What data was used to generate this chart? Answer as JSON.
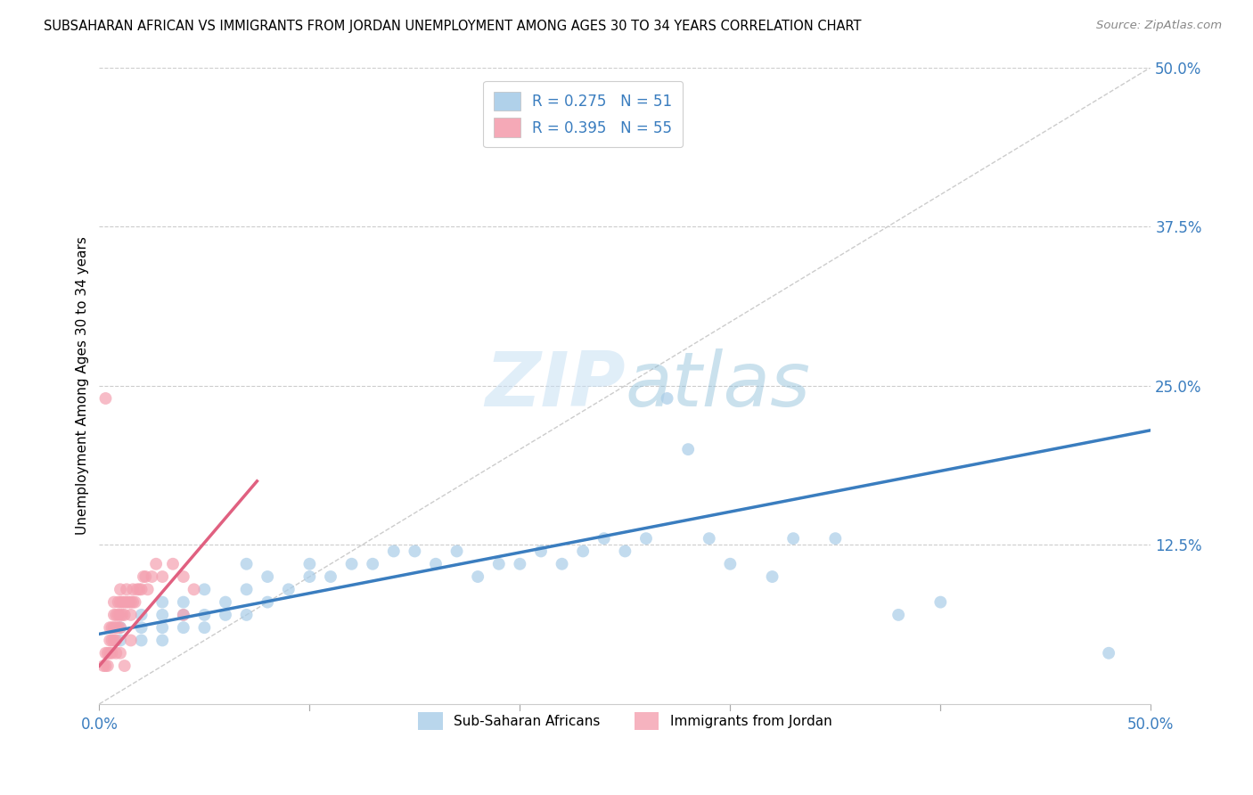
{
  "title": "SUBSAHARAN AFRICAN VS IMMIGRANTS FROM JORDAN UNEMPLOYMENT AMONG AGES 30 TO 34 YEARS CORRELATION CHART",
  "source": "Source: ZipAtlas.com",
  "ylabel": "Unemployment Among Ages 30 to 34 years",
  "xlim": [
    0.0,
    0.5
  ],
  "ylim": [
    0.0,
    0.5
  ],
  "xtick_positions": [
    0.0,
    0.1,
    0.2,
    0.3,
    0.4,
    0.5
  ],
  "ytick_positions": [
    0.0,
    0.125,
    0.25,
    0.375,
    0.5
  ],
  "xticklabels": [
    "0.0%",
    "",
    "",
    "",
    "",
    "50.0%"
  ],
  "yticklabels": [
    "",
    "12.5%",
    "25.0%",
    "37.5%",
    "50.0%"
  ],
  "watermark": "ZIPatlas",
  "legend_blue_r": "R = 0.275",
  "legend_blue_n": "N = 51",
  "legend_pink_r": "R = 0.395",
  "legend_pink_n": "N = 55",
  "blue_color": "#a8cce8",
  "pink_color": "#f4a0b0",
  "blue_line_color": "#3a7dbf",
  "pink_line_color": "#e06080",
  "blue_scatter": [
    [
      0.01,
      0.05
    ],
    [
      0.01,
      0.06
    ],
    [
      0.02,
      0.05
    ],
    [
      0.02,
      0.06
    ],
    [
      0.02,
      0.07
    ],
    [
      0.03,
      0.05
    ],
    [
      0.03,
      0.06
    ],
    [
      0.03,
      0.07
    ],
    [
      0.03,
      0.08
    ],
    [
      0.04,
      0.06
    ],
    [
      0.04,
      0.07
    ],
    [
      0.04,
      0.08
    ],
    [
      0.05,
      0.06
    ],
    [
      0.05,
      0.07
    ],
    [
      0.05,
      0.09
    ],
    [
      0.06,
      0.07
    ],
    [
      0.06,
      0.08
    ],
    [
      0.07,
      0.07
    ],
    [
      0.07,
      0.09
    ],
    [
      0.07,
      0.11
    ],
    [
      0.08,
      0.08
    ],
    [
      0.08,
      0.1
    ],
    [
      0.09,
      0.09
    ],
    [
      0.1,
      0.1
    ],
    [
      0.1,
      0.11
    ],
    [
      0.11,
      0.1
    ],
    [
      0.12,
      0.11
    ],
    [
      0.13,
      0.11
    ],
    [
      0.14,
      0.12
    ],
    [
      0.15,
      0.12
    ],
    [
      0.16,
      0.11
    ],
    [
      0.17,
      0.12
    ],
    [
      0.18,
      0.1
    ],
    [
      0.19,
      0.11
    ],
    [
      0.2,
      0.11
    ],
    [
      0.21,
      0.12
    ],
    [
      0.22,
      0.11
    ],
    [
      0.23,
      0.12
    ],
    [
      0.24,
      0.13
    ],
    [
      0.25,
      0.12
    ],
    [
      0.26,
      0.13
    ],
    [
      0.27,
      0.24
    ],
    [
      0.28,
      0.2
    ],
    [
      0.29,
      0.13
    ],
    [
      0.3,
      0.11
    ],
    [
      0.32,
      0.1
    ],
    [
      0.33,
      0.13
    ],
    [
      0.35,
      0.13
    ],
    [
      0.38,
      0.07
    ],
    [
      0.4,
      0.08
    ],
    [
      0.48,
      0.04
    ]
  ],
  "pink_scatter": [
    [
      0.003,
      0.03
    ],
    [
      0.004,
      0.04
    ],
    [
      0.005,
      0.05
    ],
    [
      0.005,
      0.06
    ],
    [
      0.006,
      0.05
    ],
    [
      0.006,
      0.06
    ],
    [
      0.007,
      0.06
    ],
    [
      0.007,
      0.07
    ],
    [
      0.007,
      0.08
    ],
    [
      0.008,
      0.05
    ],
    [
      0.008,
      0.06
    ],
    [
      0.008,
      0.07
    ],
    [
      0.009,
      0.06
    ],
    [
      0.009,
      0.07
    ],
    [
      0.009,
      0.08
    ],
    [
      0.01,
      0.06
    ],
    [
      0.01,
      0.07
    ],
    [
      0.01,
      0.08
    ],
    [
      0.01,
      0.09
    ],
    [
      0.011,
      0.07
    ],
    [
      0.011,
      0.08
    ],
    [
      0.012,
      0.07
    ],
    [
      0.012,
      0.08
    ],
    [
      0.013,
      0.08
    ],
    [
      0.013,
      0.09
    ],
    [
      0.014,
      0.08
    ],
    [
      0.015,
      0.07
    ],
    [
      0.015,
      0.08
    ],
    [
      0.016,
      0.08
    ],
    [
      0.016,
      0.09
    ],
    [
      0.017,
      0.08
    ],
    [
      0.018,
      0.09
    ],
    [
      0.019,
      0.09
    ],
    [
      0.02,
      0.09
    ],
    [
      0.021,
      0.1
    ],
    [
      0.022,
      0.1
    ],
    [
      0.023,
      0.09
    ],
    [
      0.025,
      0.1
    ],
    [
      0.027,
      0.11
    ],
    [
      0.03,
      0.1
    ],
    [
      0.035,
      0.11
    ],
    [
      0.04,
      0.1
    ],
    [
      0.002,
      0.03
    ],
    [
      0.003,
      0.04
    ],
    [
      0.004,
      0.03
    ],
    [
      0.005,
      0.04
    ],
    [
      0.006,
      0.04
    ],
    [
      0.007,
      0.05
    ],
    [
      0.008,
      0.04
    ],
    [
      0.01,
      0.04
    ],
    [
      0.012,
      0.03
    ],
    [
      0.015,
      0.05
    ],
    [
      0.003,
      0.24
    ],
    [
      0.04,
      0.07
    ],
    [
      0.045,
      0.09
    ]
  ],
  "blue_trend_x": [
    0.0,
    0.5
  ],
  "blue_trend_y": [
    0.055,
    0.215
  ],
  "pink_trend_x": [
    0.0,
    0.075
  ],
  "pink_trend_y": [
    0.03,
    0.175
  ]
}
